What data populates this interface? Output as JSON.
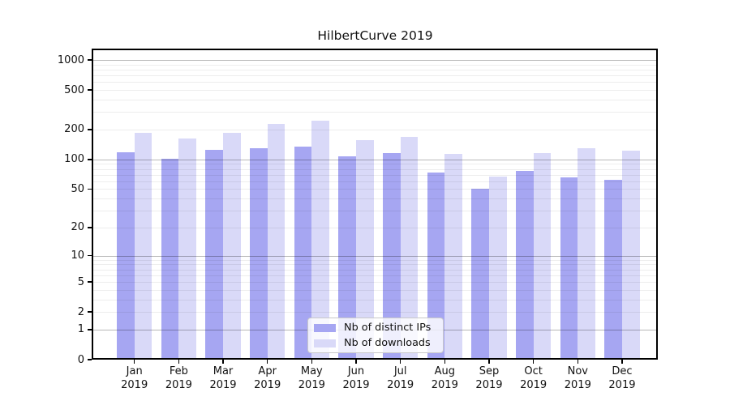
{
  "title": "HilbertCurve 2019",
  "legend": {
    "ips_label": "Nb of distinct IPs",
    "downloads_label": "Nb of downloads",
    "position": "lower center"
  },
  "colors": {
    "ips_bar": "#a6a6f2",
    "downloads_bar": "#d9d9f8",
    "grid_major": "rgba(0,0,0,0.28)",
    "grid_minor": "rgba(0,0,0,0.07)",
    "axis": "#000000",
    "text": "#111111",
    "background": "#ffffff"
  },
  "chart_data": {
    "type": "bar",
    "title": "HilbertCurve 2019",
    "categories": [
      "Jan",
      "Feb",
      "Mar",
      "Apr",
      "May",
      "Jun",
      "Jul",
      "Aug",
      "Sep",
      "Oct",
      "Nov",
      "Dec"
    ],
    "year_label": "2019",
    "series": [
      {
        "name": "Nb of distinct IPs",
        "color": "#a6a6f2",
        "values": [
          118,
          101,
          124,
          130,
          136,
          107,
          117,
          73,
          50,
          76,
          66,
          62
        ]
      },
      {
        "name": "Nb of downloads",
        "color": "#d9d9f8",
        "values": [
          185,
          162,
          186,
          228,
          248,
          156,
          169,
          114,
          67,
          116,
          130,
          123
        ]
      }
    ],
    "xlabel": "",
    "ylabel": "",
    "yscale": "log1p",
    "yticks": [
      0,
      1,
      2,
      5,
      10,
      20,
      50,
      100,
      200,
      500,
      1000
    ],
    "ylim": [
      0,
      1280
    ],
    "grid": "both",
    "legend_position": "lower center"
  }
}
